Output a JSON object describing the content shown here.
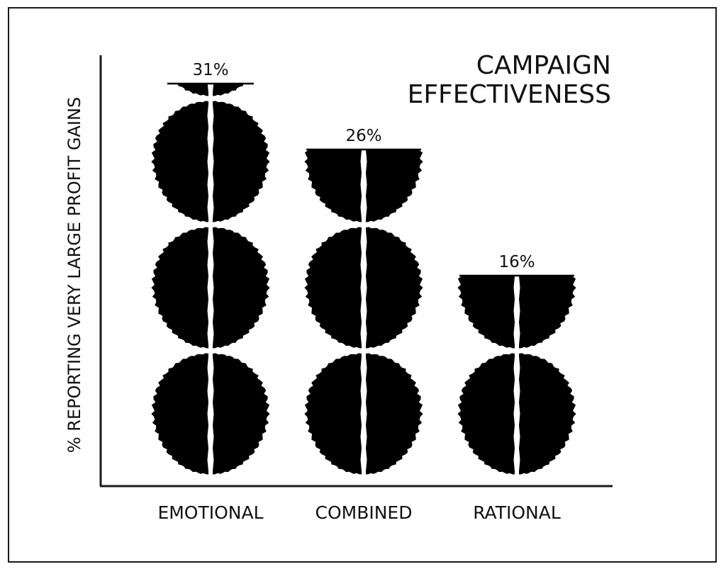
{
  "chart_data": {
    "type": "bar",
    "title_lines": [
      "CAMPAIGN",
      "EFFECTIVENESS"
    ],
    "ylabel": "% REPORTING VERY LARGE PROFIT GAINS",
    "xlabel": "",
    "categories": [
      "EMOTIONAL",
      "COMBINED",
      "RATIONAL"
    ],
    "values": [
      31,
      26,
      16
    ],
    "value_labels": [
      "31%",
      "26%",
      "16%"
    ],
    "unit_per_icon": 10,
    "icon_name": "brain-icon",
    "grid": false,
    "legend": "none",
    "colors": {
      "icon": "#000000",
      "text": "#111111",
      "axis": "#1a1a1a"
    }
  }
}
